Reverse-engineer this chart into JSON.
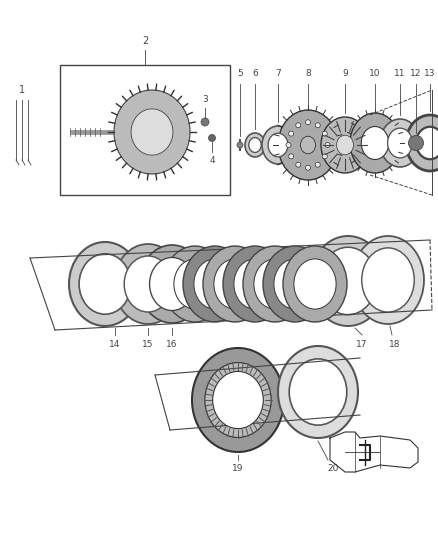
{
  "bg_color": "#ffffff",
  "lc": "#444444",
  "gray1": "#888888",
  "gray2": "#aaaaaa",
  "gray3": "#cccccc",
  "gray_dark": "#555555",
  "black": "#222222"
}
